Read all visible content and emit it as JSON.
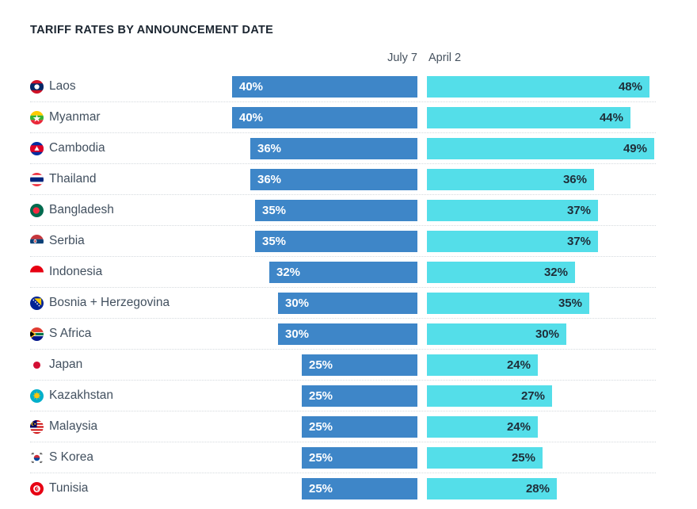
{
  "chart_data": {
    "type": "bar",
    "orientation": "horizontal",
    "title": "TARIFF RATES BY ANNOUNCEMENT DATE",
    "unit": "%",
    "value_range": [
      0,
      49
    ],
    "grid": "dotted-row-separators",
    "legend_position": "column-headers-top",
    "colors": {
      "july_7": "#3e86c8",
      "april_2": "#54dee9"
    },
    "categories": [
      "Laos",
      "Myanmar",
      "Cambodia",
      "Thailand",
      "Bangladesh",
      "Serbia",
      "Indonesia",
      "Bosnia + Herzegovina",
      "S Africa",
      "Japan",
      "Kazakhstan",
      "Malaysia",
      "S Korea",
      "Tunisia"
    ],
    "flags": [
      "laos",
      "myanmar",
      "cambodia",
      "thailand",
      "bangladesh",
      "serbia",
      "indonesia",
      "bosnia-herzegovina",
      "s-africa",
      "japan",
      "kazakhstan",
      "malaysia",
      "s-korea",
      "tunisia"
    ],
    "series": [
      {
        "name": "July 7",
        "values": [
          40,
          40,
          36,
          36,
          35,
          35,
          32,
          30,
          30,
          25,
          25,
          25,
          25,
          25
        ]
      },
      {
        "name": "April 2",
        "values": [
          48,
          44,
          49,
          36,
          37,
          37,
          32,
          35,
          30,
          24,
          27,
          24,
          25,
          28
        ]
      }
    ]
  }
}
